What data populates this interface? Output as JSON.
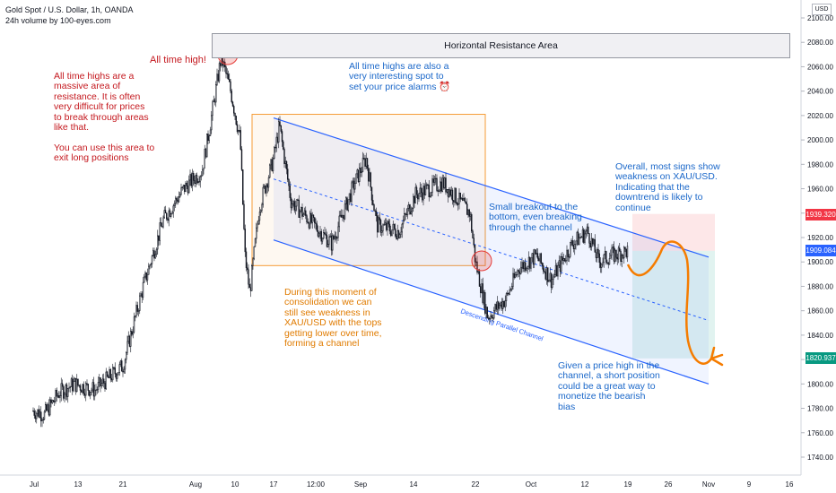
{
  "header": {
    "symbol_line": "Gold Spot / U.S. Dollar, 1h, OANDA",
    "volume_line": "24h volume by 100-eyes.com",
    "currency_badge": "USD"
  },
  "annotations": {
    "resistance_label": "Horizontal Resistance Area",
    "ath_label": "All time high!",
    "ath_note": "All time highs are a\nmassive area of\nresistance. It is often\nvery difficult for prices\nto break through areas\nlike that.\n\nYou can use this area to\nexit long positions",
    "alarm_note": "All time highs are also a\nvery interesting spot to\nset your price alarms ⏰",
    "consolidation_note": "During this moment of\nconsolidation we can\nstill see weakness in\nXAU/USD with the tops\ngetting lower over time,\nforming a channel",
    "breakout_note": "Small breakout to the\nbottom, even breaking\nthrough the channel",
    "overall_note": "Overall, most signs show\nweakness on XAU/USD.\nIndicating that the\ndowntrend is likely to\ncontinue",
    "short_note": "Given a price high in the\nchannel, a short position\ncould be a great way to\nmonetize the bearish\nbias",
    "channel_label": "Descending Parallel Channel"
  },
  "price_tags": {
    "stop": "1939.320",
    "current": "1909.084",
    "target": "1820.937"
  },
  "colors": {
    "up_candle": "#131722",
    "down_candle": "#131722",
    "channel": "#2962ff",
    "consolidation_box": "#f59b36",
    "stop_zone": "#f23645",
    "target_zone": "#089981",
    "projection": "#f57c00",
    "circle": "#e53935"
  },
  "chart_data": {
    "type": "candlestick",
    "title": "Gold Spot / U.S. Dollar, 1h, OANDA",
    "y_axis": {
      "ticks": [
        2100,
        2080,
        2060,
        2040,
        2020,
        2000,
        1980,
        1960,
        1940,
        1920,
        1900,
        1880,
        1860,
        1840,
        1820,
        1800,
        1780,
        1760,
        1740
      ],
      "range": [
        1728,
        2110
      ]
    },
    "x_axis": {
      "ticks": [
        "Jul",
        "13",
        "21",
        "Aug",
        "10",
        "17",
        "12:00",
        "Sep",
        "14",
        "22",
        "Oct",
        "12",
        "19",
        "26",
        "Nov",
        "9",
        "16"
      ]
    },
    "price_path": [
      {
        "date": "Jul 1",
        "price": 1778
      },
      {
        "date": "Jul 4",
        "price": 1775
      },
      {
        "date": "Jul 8",
        "price": 1793
      },
      {
        "date": "Jul 12",
        "price": 1800
      },
      {
        "date": "Jul 16",
        "price": 1795
      },
      {
        "date": "Jul 21",
        "price": 1815
      },
      {
        "date": "Jul 24",
        "price": 1880
      },
      {
        "date": "Jul 27",
        "price": 1935
      },
      {
        "date": "Jul 30",
        "price": 1960
      },
      {
        "date": "Aug 2",
        "price": 1975
      },
      {
        "date": "Aug 4",
        "price": 2020
      },
      {
        "date": "Aug 6",
        "price": 2068
      },
      {
        "date": "Aug 8",
        "price": 2040
      },
      {
        "date": "Aug 10",
        "price": 2000
      },
      {
        "date": "Aug 11",
        "price": 1905
      },
      {
        "date": "Aug 12",
        "price": 1875
      },
      {
        "date": "Aug 14",
        "price": 1945
      },
      {
        "date": "Aug 17",
        "price": 1985
      },
      {
        "date": "Aug 18",
        "price": 2012
      },
      {
        "date": "Aug 20",
        "price": 1950
      },
      {
        "date": "Aug 24",
        "price": 1930
      },
      {
        "date": "Aug 27",
        "price": 1915
      },
      {
        "date": "Aug 31",
        "price": 1965
      },
      {
        "date": "Sep 2",
        "price": 1985
      },
      {
        "date": "Sep 4",
        "price": 1930
      },
      {
        "date": "Sep 8",
        "price": 1925
      },
      {
        "date": "Sep 11",
        "price": 1955
      },
      {
        "date": "Sep 16",
        "price": 1965
      },
      {
        "date": "Sep 21",
        "price": 1940
      },
      {
        "date": "Sep 22",
        "price": 1900
      },
      {
        "date": "Sep 24",
        "price": 1855
      },
      {
        "date": "Sep 27",
        "price": 1870
      },
      {
        "date": "Sep 29",
        "price": 1895
      },
      {
        "date": "Oct 2",
        "price": 1905
      },
      {
        "date": "Oct 5",
        "price": 1885
      },
      {
        "date": "Oct 9",
        "price": 1915
      },
      {
        "date": "Oct 12",
        "price": 1925
      },
      {
        "date": "Oct 14",
        "price": 1900
      },
      {
        "date": "Oct 16",
        "price": 1905
      },
      {
        "date": "Oct 19",
        "price": 1909
      }
    ],
    "horizontal_resistance": [
      2075,
      2090
    ],
    "channel": {
      "upper": [
        {
          "date": "Aug 17",
          "price": 2018
        },
        {
          "date": "Nov 2",
          "price": 1904
        }
      ],
      "lower": [
        {
          "date": "Aug 17",
          "price": 1918
        },
        {
          "date": "Nov 2",
          "price": 1800
        }
      ]
    },
    "position": {
      "side": "short",
      "stop": 1939.32,
      "entry": 1909.084,
      "target": 1820.937
    },
    "ath": 2075
  }
}
